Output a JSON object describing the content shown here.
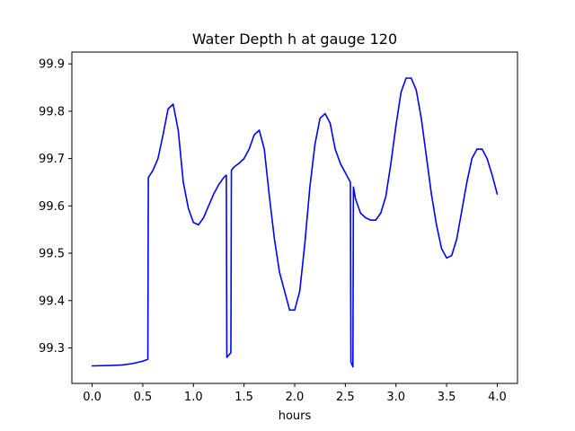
{
  "chart_data": {
    "type": "line",
    "title": "Water Depth h at gauge 120",
    "xlabel": "hours",
    "ylabel": "",
    "xlim": [
      -0.2,
      4.2
    ],
    "ylim": [
      99.225,
      99.925
    ],
    "xticks": [
      0.0,
      0.5,
      1.0,
      1.5,
      2.0,
      2.5,
      3.0,
      3.5,
      4.0
    ],
    "xtick_labels": [
      "0.0",
      "0.5",
      "1.0",
      "1.5",
      "2.0",
      "2.5",
      "3.0",
      "3.5",
      "4.0"
    ],
    "yticks": [
      99.3,
      99.4,
      99.5,
      99.6,
      99.7,
      99.8,
      99.9
    ],
    "ytick_labels": [
      "99.3",
      "99.4",
      "99.5",
      "99.6",
      "99.7",
      "99.8",
      "99.9"
    ],
    "grid": false,
    "series": [
      {
        "name": "",
        "color": "#0000ff",
        "x": [
          0.0,
          0.2,
          0.3,
          0.4,
          0.5,
          0.55,
          0.555,
          0.6,
          0.65,
          0.7,
          0.75,
          0.8,
          0.85,
          0.9,
          0.95,
          1.0,
          1.05,
          1.1,
          1.15,
          1.2,
          1.25,
          1.3,
          1.325,
          1.33,
          1.37,
          1.375,
          1.4,
          1.45,
          1.5,
          1.55,
          1.6,
          1.65,
          1.7,
          1.75,
          1.8,
          1.85,
          1.9,
          1.95,
          2.0,
          2.05,
          2.1,
          2.15,
          2.2,
          2.25,
          2.3,
          2.35,
          2.4,
          2.45,
          2.5,
          2.55,
          2.555,
          2.575,
          2.58,
          2.6,
          2.65,
          2.7,
          2.75,
          2.8,
          2.85,
          2.9,
          2.95,
          3.0,
          3.05,
          3.1,
          3.15,
          3.2,
          3.25,
          3.3,
          3.35,
          3.4,
          3.45,
          3.5,
          3.55,
          3.6,
          3.65,
          3.7,
          3.75,
          3.8,
          3.85,
          3.9,
          3.95,
          4.0
        ],
        "values": [
          99.262,
          99.263,
          99.264,
          99.267,
          99.272,
          99.276,
          99.66,
          99.675,
          99.7,
          99.75,
          99.805,
          99.815,
          99.76,
          99.65,
          99.595,
          99.565,
          99.56,
          99.575,
          99.6,
          99.625,
          99.645,
          99.66,
          99.665,
          99.28,
          99.29,
          99.675,
          99.682,
          99.69,
          99.7,
          99.72,
          99.75,
          99.76,
          99.72,
          99.62,
          99.53,
          99.46,
          99.42,
          99.38,
          99.38,
          99.42,
          99.52,
          99.64,
          99.73,
          99.785,
          99.795,
          99.775,
          99.72,
          99.69,
          99.67,
          99.65,
          99.27,
          99.26,
          99.64,
          99.615,
          99.585,
          99.575,
          99.57,
          99.57,
          99.585,
          99.62,
          99.69,
          99.77,
          99.84,
          99.87,
          99.87,
          99.845,
          99.785,
          99.705,
          99.625,
          99.56,
          99.51,
          99.49,
          99.495,
          99.53,
          99.59,
          99.65,
          99.7,
          99.72,
          99.72,
          99.7,
          99.665,
          99.625
        ]
      }
    ]
  }
}
